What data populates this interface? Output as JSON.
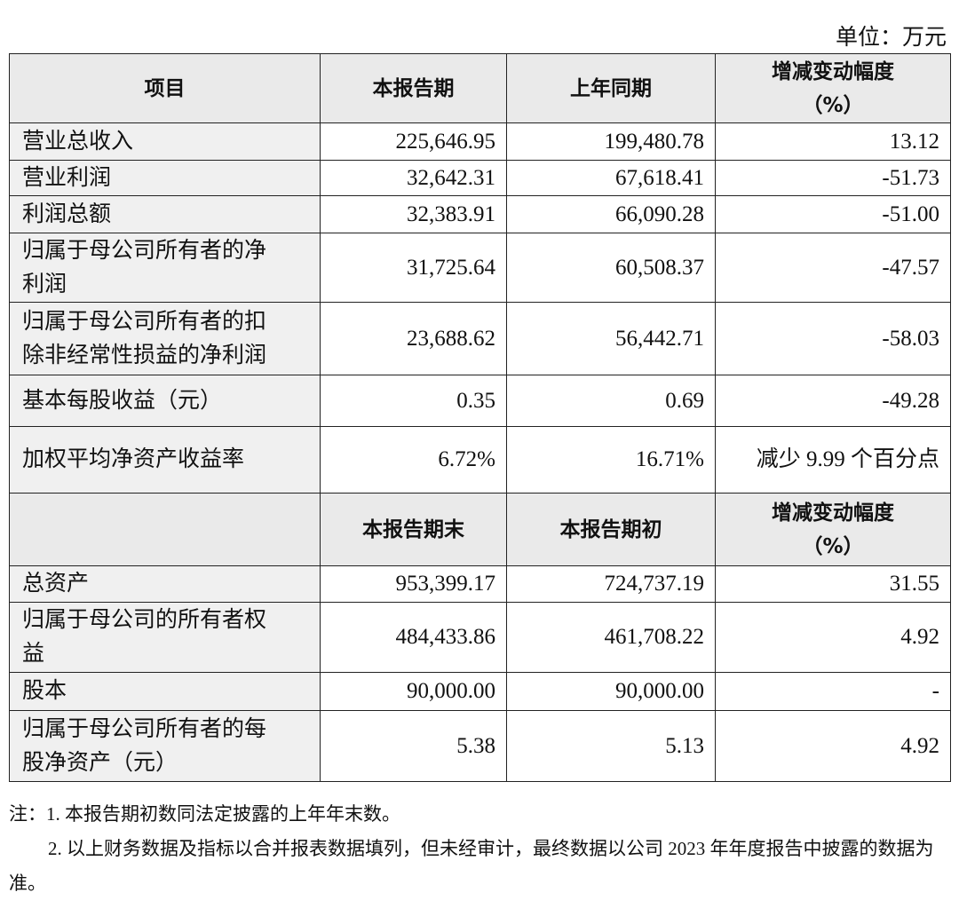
{
  "unit": "单位：万元",
  "table": {
    "header": [
      "项目",
      "本报告期",
      "上年同期",
      "增减变动幅度（%）"
    ],
    "rows": [
      [
        "营业总收入",
        "225,646.95",
        "199,480.78",
        "13.12"
      ],
      [
        "营业利润",
        "32,642.31",
        "67,618.41",
        "-51.73"
      ],
      [
        "利润总额",
        "32,383.91",
        "66,090.28",
        "-51.00"
      ],
      [
        "归属于母公司所有者的净利润",
        "31,725.64",
        "60,508.37",
        "-47.57"
      ],
      [
        "归属于母公司所有者的扣除非经常性损益的净利润",
        "23,688.62",
        "56,442.71",
        "-58.03"
      ],
      [
        "基本每股收益（元）",
        "0.35",
        "0.69",
        "-49.28"
      ],
      [
        "加权平均净资产收益率",
        "6.72%",
        "16.71%",
        "减少 9.99 个百分点"
      ]
    ],
    "header2": [
      "本报告期末",
      "本报告期初",
      "增减变动幅度（%）"
    ],
    "rows2": [
      [
        "总资产",
        "953,399.17",
        "724,737.19",
        "31.55"
      ],
      [
        "归属于母公司的所有者权益",
        "484,433.86",
        "461,708.22",
        "4.92"
      ],
      [
        "股本",
        "90,000.00",
        "90,000.00",
        "-"
      ],
      [
        "归属于母公司所有者的每股净资产（元）",
        "5.38",
        "5.13",
        "4.92"
      ]
    ]
  },
  "notes": [
    "注：1. 本报告期初数同法定披露的上年年末数。",
    "2. 以上财务数据及指标以合并报表数据填列，但未经审计，最终数据以公司 2023 年年度报告中披露的数据为准。"
  ]
}
